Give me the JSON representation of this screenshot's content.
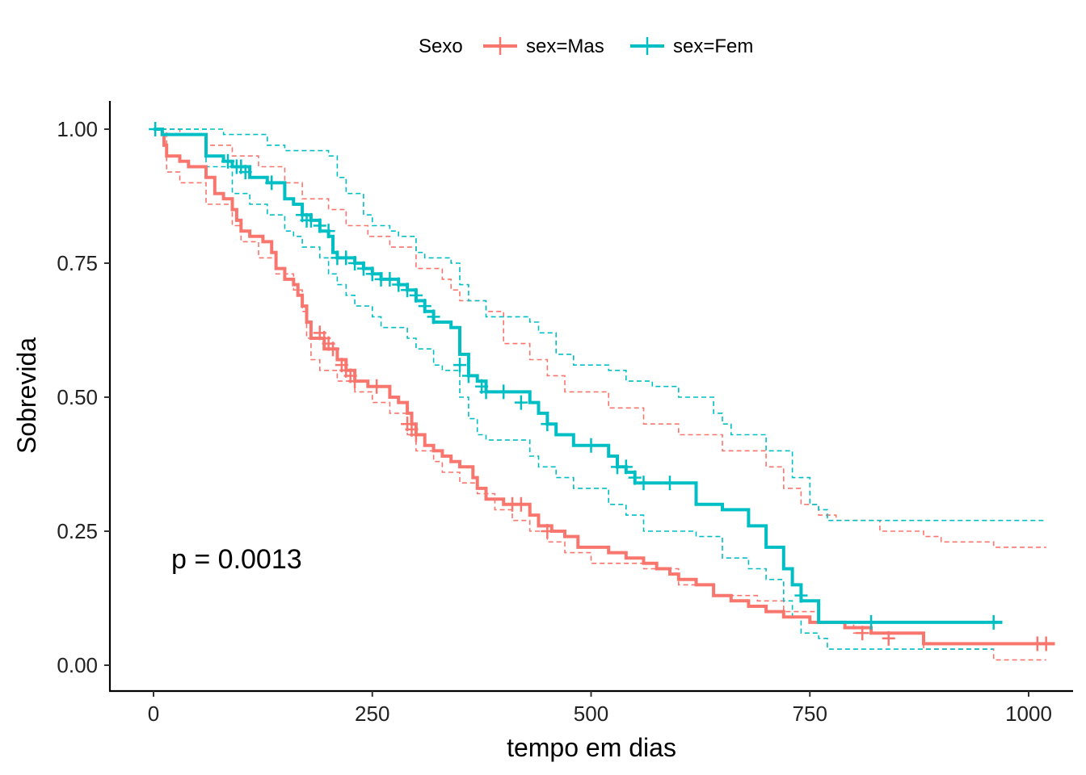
{
  "chart_data": {
    "type": "line",
    "subtype": "kaplan-meier",
    "xlabel": "tempo em dias",
    "ylabel": "Sobrevida",
    "xlim": [
      -50,
      1050
    ],
    "ylim": [
      -0.05,
      1.05
    ],
    "x_ticks": [
      0,
      250,
      500,
      750,
      1000
    ],
    "x_tick_labels": [
      "0",
      "250",
      "500",
      "750",
      "1000"
    ],
    "y_ticks": [
      0,
      0.25,
      0.5,
      0.75,
      1.0
    ],
    "y_tick_labels": [
      "0.00",
      "0.25",
      "0.50",
      "0.75",
      "1.00"
    ],
    "grid": false,
    "legend": {
      "title": "Sexo",
      "position": "top",
      "entries": [
        "sex=Mas",
        "sex=Fem"
      ]
    },
    "annotation": "p = 0.0013",
    "series": [
      {
        "name": "sex=Mas",
        "color": "#F8766D",
        "steps": [
          [
            0,
            1.0
          ],
          [
            10,
            0.99
          ],
          [
            12,
            0.97
          ],
          [
            15,
            0.95
          ],
          [
            30,
            0.94
          ],
          [
            40,
            0.93
          ],
          [
            60,
            0.91
          ],
          [
            70,
            0.88
          ],
          [
            80,
            0.87
          ],
          [
            90,
            0.85
          ],
          [
            95,
            0.83
          ],
          [
            100,
            0.81
          ],
          [
            110,
            0.8
          ],
          [
            125,
            0.79
          ],
          [
            135,
            0.77
          ],
          [
            140,
            0.74
          ],
          [
            150,
            0.72
          ],
          [
            160,
            0.71
          ],
          [
            165,
            0.69
          ],
          [
            170,
            0.67
          ],
          [
            175,
            0.64
          ],
          [
            180,
            0.61
          ],
          [
            195,
            0.59
          ],
          [
            210,
            0.57
          ],
          [
            220,
            0.55
          ],
          [
            230,
            0.53
          ],
          [
            245,
            0.52
          ],
          [
            270,
            0.5
          ],
          [
            280,
            0.49
          ],
          [
            290,
            0.47
          ],
          [
            295,
            0.45
          ],
          [
            300,
            0.43
          ],
          [
            310,
            0.41
          ],
          [
            320,
            0.4
          ],
          [
            330,
            0.39
          ],
          [
            340,
            0.38
          ],
          [
            350,
            0.37
          ],
          [
            365,
            0.35
          ],
          [
            370,
            0.33
          ],
          [
            380,
            0.31
          ],
          [
            390,
            0.31
          ],
          [
            400,
            0.3
          ],
          [
            430,
            0.28
          ],
          [
            440,
            0.26
          ],
          [
            455,
            0.25
          ],
          [
            470,
            0.24
          ],
          [
            485,
            0.22
          ],
          [
            520,
            0.21
          ],
          [
            540,
            0.2
          ],
          [
            560,
            0.19
          ],
          [
            575,
            0.18
          ],
          [
            590,
            0.17
          ],
          [
            600,
            0.16
          ],
          [
            620,
            0.15
          ],
          [
            640,
            0.13
          ],
          [
            660,
            0.12
          ],
          [
            680,
            0.11
          ],
          [
            700,
            0.1
          ],
          [
            720,
            0.09
          ],
          [
            750,
            0.08
          ],
          [
            790,
            0.07
          ],
          [
            820,
            0.06
          ],
          [
            880,
            0.04
          ],
          [
            1030,
            0.04
          ]
        ],
        "censored": [
          [
            190,
            0.62
          ],
          [
            195,
            0.61
          ],
          [
            200,
            0.6
          ],
          [
            205,
            0.59
          ],
          [
            215,
            0.56
          ],
          [
            220,
            0.55
          ],
          [
            225,
            0.54
          ],
          [
            230,
            0.53
          ],
          [
            255,
            0.52
          ],
          [
            290,
            0.45
          ],
          [
            295,
            0.44
          ],
          [
            300,
            0.43
          ],
          [
            410,
            0.3
          ],
          [
            420,
            0.3
          ],
          [
            450,
            0.25
          ],
          [
            810,
            0.06
          ],
          [
            840,
            0.05
          ],
          [
            1010,
            0.04
          ],
          [
            1020,
            0.04
          ]
        ],
        "ci_upper": [
          [
            0,
            1.0
          ],
          [
            10,
            1.0
          ],
          [
            30,
            0.99
          ],
          [
            60,
            0.97
          ],
          [
            90,
            0.95
          ],
          [
            120,
            0.93
          ],
          [
            150,
            0.9
          ],
          [
            170,
            0.87
          ],
          [
            200,
            0.85
          ],
          [
            220,
            0.82
          ],
          [
            245,
            0.8
          ],
          [
            270,
            0.78
          ],
          [
            300,
            0.74
          ],
          [
            330,
            0.72
          ],
          [
            340,
            0.7
          ],
          [
            350,
            0.68
          ],
          [
            380,
            0.66
          ],
          [
            400,
            0.6
          ],
          [
            430,
            0.57
          ],
          [
            450,
            0.54
          ],
          [
            470,
            0.51
          ],
          [
            520,
            0.48
          ],
          [
            560,
            0.45
          ],
          [
            600,
            0.43
          ],
          [
            650,
            0.4
          ],
          [
            700,
            0.37
          ],
          [
            720,
            0.33
          ],
          [
            740,
            0.3
          ],
          [
            760,
            0.28
          ],
          [
            780,
            0.27
          ],
          [
            830,
            0.25
          ],
          [
            880,
            0.24
          ],
          [
            900,
            0.23
          ],
          [
            960,
            0.22
          ],
          [
            1020,
            0.22
          ]
        ],
        "ci_lower": [
          [
            0,
            1.0
          ],
          [
            15,
            0.92
          ],
          [
            30,
            0.9
          ],
          [
            60,
            0.86
          ],
          [
            90,
            0.82
          ],
          [
            100,
            0.79
          ],
          [
            120,
            0.76
          ],
          [
            140,
            0.73
          ],
          [
            160,
            0.7
          ],
          [
            170,
            0.66
          ],
          [
            175,
            0.61
          ],
          [
            180,
            0.57
          ],
          [
            190,
            0.55
          ],
          [
            210,
            0.53
          ],
          [
            230,
            0.51
          ],
          [
            250,
            0.49
          ],
          [
            270,
            0.47
          ],
          [
            290,
            0.43
          ],
          [
            300,
            0.4
          ],
          [
            320,
            0.38
          ],
          [
            330,
            0.36
          ],
          [
            350,
            0.34
          ],
          [
            370,
            0.32
          ],
          [
            390,
            0.29
          ],
          [
            410,
            0.27
          ],
          [
            430,
            0.25
          ],
          [
            450,
            0.23
          ],
          [
            470,
            0.21
          ],
          [
            500,
            0.19
          ],
          [
            560,
            0.18
          ],
          [
            600,
            0.15
          ],
          [
            640,
            0.13
          ],
          [
            690,
            0.12
          ],
          [
            720,
            0.1
          ],
          [
            760,
            0.08
          ],
          [
            800,
            0.06
          ],
          [
            880,
            0.03
          ],
          [
            960,
            0.01
          ],
          [
            1020,
            0.01
          ]
        ]
      },
      {
        "name": "sex=Fem",
        "color": "#00BFC4",
        "steps": [
          [
            0,
            1.0
          ],
          [
            10,
            0.99
          ],
          [
            60,
            0.95
          ],
          [
            80,
            0.94
          ],
          [
            90,
            0.93
          ],
          [
            110,
            0.91
          ],
          [
            130,
            0.9
          ],
          [
            150,
            0.87
          ],
          [
            160,
            0.86
          ],
          [
            170,
            0.84
          ],
          [
            180,
            0.83
          ],
          [
            190,
            0.81
          ],
          [
            200,
            0.8
          ],
          [
            205,
            0.77
          ],
          [
            210,
            0.76
          ],
          [
            230,
            0.75
          ],
          [
            240,
            0.74
          ],
          [
            250,
            0.73
          ],
          [
            260,
            0.72
          ],
          [
            280,
            0.71
          ],
          [
            290,
            0.7
          ],
          [
            300,
            0.68
          ],
          [
            310,
            0.66
          ],
          [
            320,
            0.64
          ],
          [
            340,
            0.63
          ],
          [
            350,
            0.58
          ],
          [
            360,
            0.54
          ],
          [
            370,
            0.53
          ],
          [
            380,
            0.51
          ],
          [
            430,
            0.49
          ],
          [
            440,
            0.47
          ],
          [
            450,
            0.45
          ],
          [
            460,
            0.43
          ],
          [
            480,
            0.41
          ],
          [
            520,
            0.39
          ],
          [
            530,
            0.37
          ],
          [
            540,
            0.36
          ],
          [
            550,
            0.34
          ],
          [
            620,
            0.3
          ],
          [
            650,
            0.29
          ],
          [
            680,
            0.26
          ],
          [
            700,
            0.22
          ],
          [
            720,
            0.18
          ],
          [
            730,
            0.15
          ],
          [
            740,
            0.12
          ],
          [
            760,
            0.08
          ],
          [
            970,
            0.08
          ]
        ],
        "censored": [
          [
            2,
            1.0
          ],
          [
            85,
            0.94
          ],
          [
            95,
            0.93
          ],
          [
            100,
            0.93
          ],
          [
            105,
            0.92
          ],
          [
            135,
            0.9
          ],
          [
            170,
            0.84
          ],
          [
            175,
            0.83
          ],
          [
            180,
            0.83
          ],
          [
            190,
            0.82
          ],
          [
            200,
            0.81
          ],
          [
            210,
            0.76
          ],
          [
            220,
            0.76
          ],
          [
            230,
            0.75
          ],
          [
            240,
            0.74
          ],
          [
            250,
            0.73
          ],
          [
            260,
            0.72
          ],
          [
            270,
            0.72
          ],
          [
            280,
            0.71
          ],
          [
            290,
            0.7
          ],
          [
            300,
            0.69
          ],
          [
            310,
            0.67
          ],
          [
            320,
            0.65
          ],
          [
            350,
            0.56
          ],
          [
            360,
            0.54
          ],
          [
            375,
            0.52
          ],
          [
            380,
            0.51
          ],
          [
            400,
            0.51
          ],
          [
            420,
            0.49
          ],
          [
            450,
            0.45
          ],
          [
            500,
            0.41
          ],
          [
            530,
            0.37
          ],
          [
            540,
            0.37
          ],
          [
            550,
            0.35
          ],
          [
            560,
            0.34
          ],
          [
            590,
            0.34
          ],
          [
            740,
            0.13
          ],
          [
            820,
            0.08
          ],
          [
            960,
            0.08
          ]
        ],
        "ci_upper": [
          [
            0,
            1.0
          ],
          [
            80,
            0.99
          ],
          [
            130,
            0.97
          ],
          [
            150,
            0.96
          ],
          [
            200,
            0.95
          ],
          [
            210,
            0.91
          ],
          [
            220,
            0.88
          ],
          [
            240,
            0.84
          ],
          [
            250,
            0.82
          ],
          [
            270,
            0.81
          ],
          [
            280,
            0.8
          ],
          [
            300,
            0.77
          ],
          [
            310,
            0.76
          ],
          [
            340,
            0.75
          ],
          [
            350,
            0.71
          ],
          [
            360,
            0.68
          ],
          [
            380,
            0.65
          ],
          [
            430,
            0.64
          ],
          [
            440,
            0.62
          ],
          [
            460,
            0.58
          ],
          [
            480,
            0.56
          ],
          [
            520,
            0.55
          ],
          [
            540,
            0.53
          ],
          [
            570,
            0.52
          ],
          [
            600,
            0.5
          ],
          [
            640,
            0.47
          ],
          [
            650,
            0.45
          ],
          [
            660,
            0.43
          ],
          [
            700,
            0.4
          ],
          [
            730,
            0.35
          ],
          [
            750,
            0.3
          ],
          [
            760,
            0.29
          ],
          [
            770,
            0.27
          ],
          [
            960,
            0.27
          ],
          [
            1020,
            0.27
          ]
        ],
        "ci_lower": [
          [
            0,
            1.0
          ],
          [
            60,
            0.93
          ],
          [
            90,
            0.88
          ],
          [
            110,
            0.86
          ],
          [
            130,
            0.84
          ],
          [
            150,
            0.81
          ],
          [
            160,
            0.8
          ],
          [
            170,
            0.78
          ],
          [
            190,
            0.76
          ],
          [
            200,
            0.73
          ],
          [
            210,
            0.71
          ],
          [
            220,
            0.69
          ],
          [
            230,
            0.67
          ],
          [
            250,
            0.65
          ],
          [
            260,
            0.63
          ],
          [
            290,
            0.61
          ],
          [
            300,
            0.59
          ],
          [
            320,
            0.56
          ],
          [
            330,
            0.55
          ],
          [
            350,
            0.5
          ],
          [
            360,
            0.46
          ],
          [
            370,
            0.43
          ],
          [
            380,
            0.42
          ],
          [
            430,
            0.39
          ],
          [
            440,
            0.37
          ],
          [
            460,
            0.35
          ],
          [
            480,
            0.33
          ],
          [
            520,
            0.3
          ],
          [
            540,
            0.28
          ],
          [
            560,
            0.25
          ],
          [
            620,
            0.24
          ],
          [
            650,
            0.2
          ],
          [
            680,
            0.18
          ],
          [
            700,
            0.16
          ],
          [
            720,
            0.12
          ],
          [
            730,
            0.09
          ],
          [
            740,
            0.06
          ],
          [
            760,
            0.05
          ],
          [
            770,
            0.03
          ],
          [
            960,
            0.03
          ]
        ]
      }
    ]
  }
}
